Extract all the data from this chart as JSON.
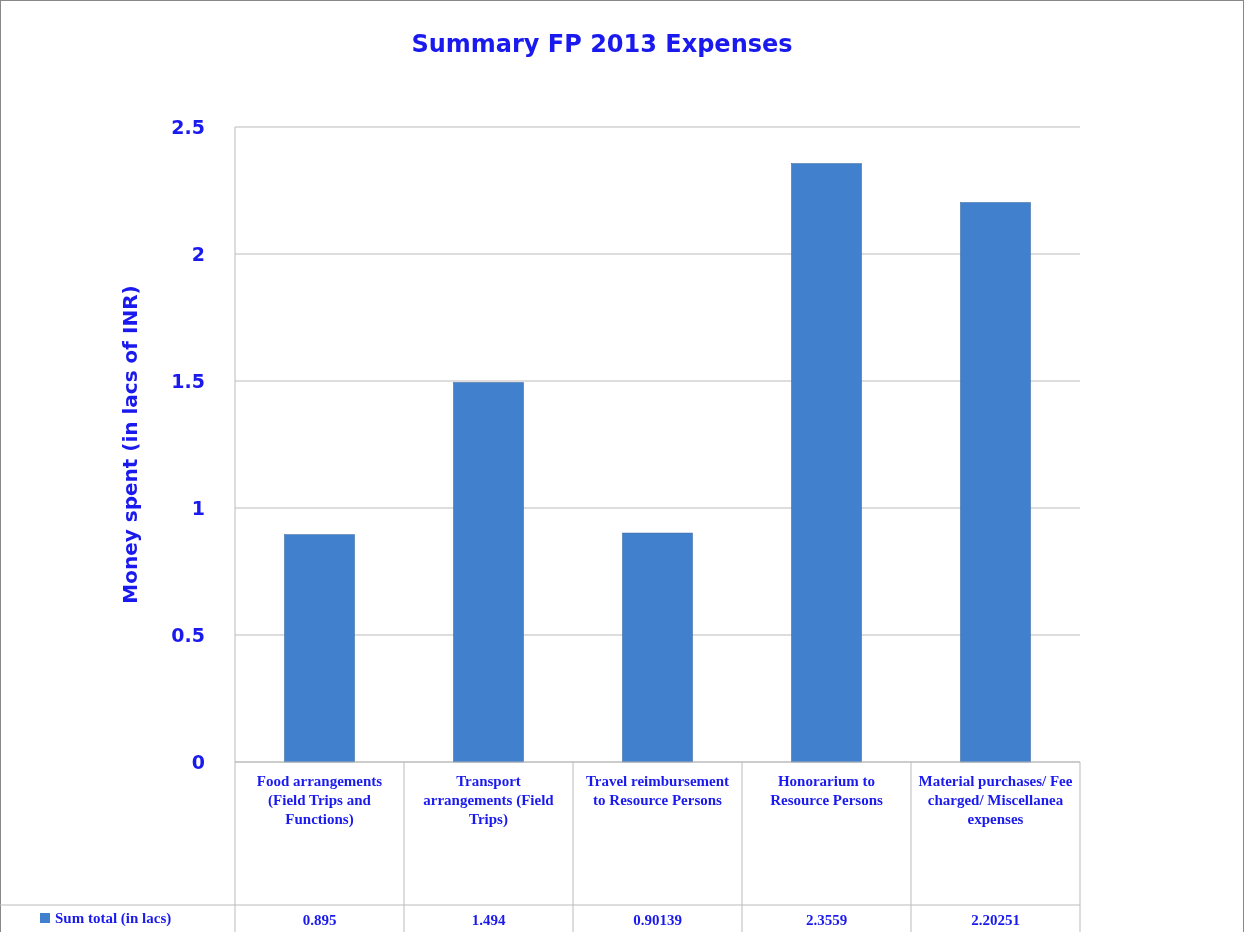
{
  "chart_data": {
    "type": "bar",
    "title": "Summary FP 2013 Expenses",
    "ylabel": "Money spent (in lacs of INR)",
    "categories": [
      "Food arrangements (Field Trips and Functions)",
      "Transport arrangements (Field Trips)",
      "Travel reimbursement to Resource Persons",
      "Honorarium to Resource Persons",
      "Material purchases/ Fee charged/ Miscellanea expenses"
    ],
    "series": [
      {
        "name": "Sum total (in lacs)",
        "color": "#4080cc",
        "values": [
          0.895,
          1.494,
          0.90139,
          2.3559,
          2.20251
        ]
      }
    ],
    "ylim": [
      0,
      2.5
    ],
    "yticks": [
      0,
      0.5,
      1,
      1.5,
      2,
      2.5
    ],
    "grid": "y",
    "legend": "bottom",
    "data_labels": true
  }
}
